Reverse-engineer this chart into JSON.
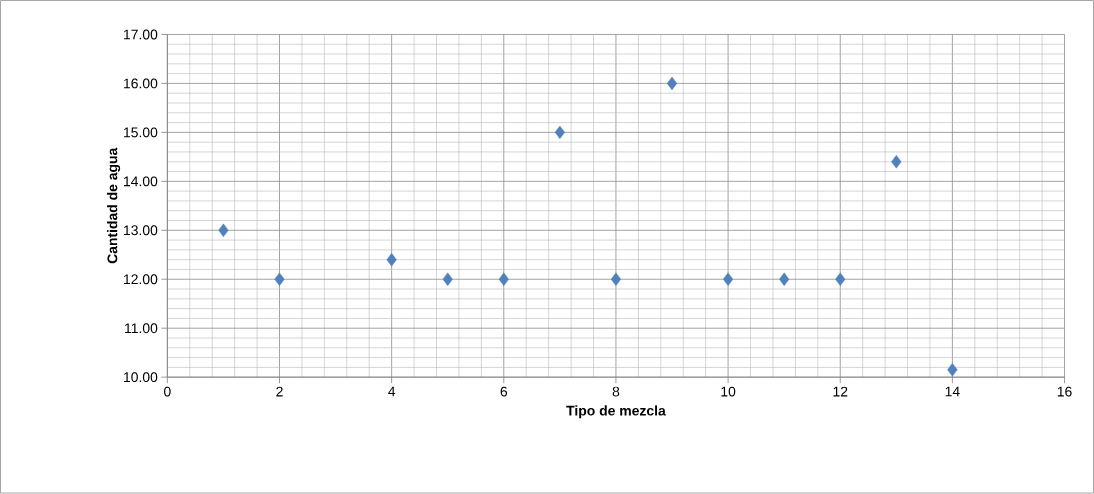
{
  "chart_data": {
    "type": "scatter",
    "xlabel": "Tipo de mezcla",
    "ylabel": "Cantidad de agua",
    "x": [
      1,
      2,
      4,
      5,
      6,
      7,
      8,
      9,
      10,
      11,
      12,
      13,
      14
    ],
    "values": [
      13,
      12,
      12.4,
      12,
      12,
      15,
      12,
      16,
      12,
      12,
      12,
      14.4,
      10.15
    ],
    "color": "#4f81bd",
    "marker": "diamond",
    "xlim": [
      0,
      16
    ],
    "xticks": [
      0,
      2,
      4,
      6,
      8,
      10,
      12,
      14,
      16
    ],
    "ylim": [
      10,
      17
    ],
    "yticks": [
      {
        "value": 10,
        "label": "10.00"
      },
      {
        "value": 11,
        "label": "11.00"
      },
      {
        "value": 12,
        "label": "12.00"
      },
      {
        "value": 13,
        "label": "13.00"
      },
      {
        "value": 14,
        "label": "14.00"
      },
      {
        "value": 15,
        "label": "15.00"
      },
      {
        "value": 16,
        "label": "16.00"
      },
      {
        "value": 17,
        "label": "17.00"
      }
    ],
    "grid": true
  }
}
